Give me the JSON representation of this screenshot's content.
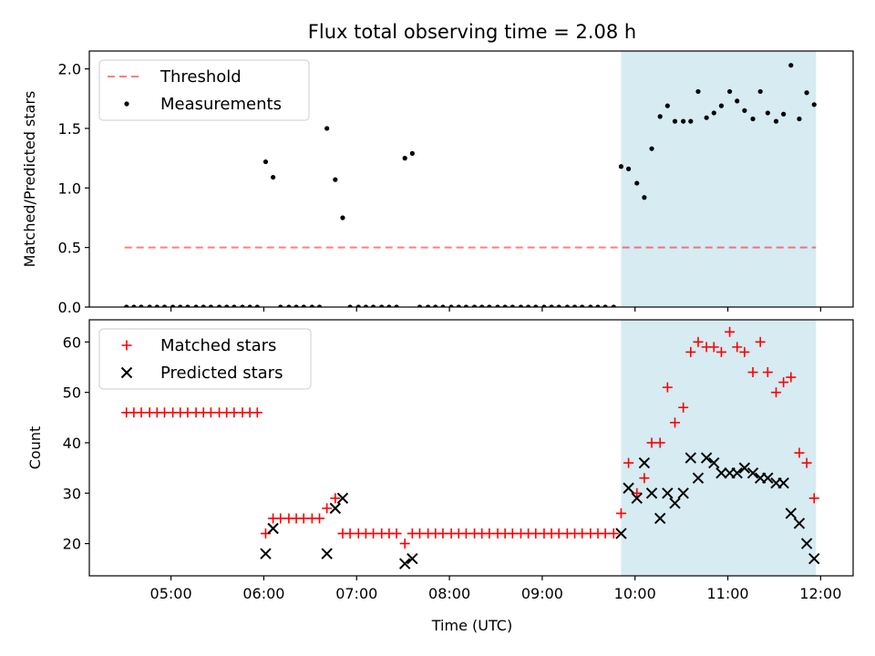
{
  "title": "Flux total observing time = 2.08 h",
  "x_axis": {
    "label": "Time (UTC)",
    "ticks": [
      {
        "t": 5.0,
        "label": "05:00"
      },
      {
        "t": 6.0,
        "label": "06:00"
      },
      {
        "t": 7.0,
        "label": "07:00"
      },
      {
        "t": 8.0,
        "label": "08:00"
      },
      {
        "t": 9.0,
        "label": "09:00"
      },
      {
        "t": 10.0,
        "label": "10:00"
      },
      {
        "t": 11.0,
        "label": "11:00"
      },
      {
        "t": 12.0,
        "label": "12:00"
      }
    ],
    "range": [
      4.12,
      12.35
    ]
  },
  "chart_data": [
    {
      "type": "scatter",
      "name": "ratio-panel",
      "ylabel": "Matched/Predicted stars",
      "ylim": [
        0,
        2.15
      ],
      "yticks": [
        0.0,
        0.5,
        1.0,
        1.5,
        2.0
      ],
      "ytick_labels": [
        "0.0",
        "0.5",
        "1.0",
        "1.5",
        "2.0"
      ],
      "shaded_interval": {
        "x_from": 9.85,
        "x_to": 11.95,
        "color": "#add8e6"
      },
      "threshold": {
        "name": "Threshold",
        "y": 0.5,
        "x_from": 4.5,
        "x_to": 11.95,
        "color": "#ff0000",
        "alpha": 0.5
      },
      "legend": {
        "location": "upper left",
        "entries": [
          "Threshold",
          "Measurements"
        ]
      },
      "series": [
        {
          "name": "Measurements",
          "color": "#000000",
          "points": [
            [
              4.52,
              0
            ],
            [
              4.6,
              0
            ],
            [
              4.68,
              0
            ],
            [
              4.77,
              0
            ],
            [
              4.85,
              0
            ],
            [
              4.93,
              0
            ],
            [
              5.02,
              0
            ],
            [
              5.1,
              0
            ],
            [
              5.18,
              0
            ],
            [
              5.27,
              0
            ],
            [
              5.35,
              0
            ],
            [
              5.43,
              0
            ],
            [
              5.52,
              0
            ],
            [
              5.6,
              0
            ],
            [
              5.68,
              0
            ],
            [
              5.77,
              0
            ],
            [
              5.85,
              0
            ],
            [
              5.93,
              0
            ],
            [
              6.02,
              1.22
            ],
            [
              6.1,
              1.09
            ],
            [
              6.18,
              0
            ],
            [
              6.27,
              0
            ],
            [
              6.35,
              0
            ],
            [
              6.43,
              0
            ],
            [
              6.52,
              0
            ],
            [
              6.6,
              0
            ],
            [
              6.68,
              1.5
            ],
            [
              6.77,
              1.07
            ],
            [
              6.85,
              0.75
            ],
            [
              6.93,
              0
            ],
            [
              7.02,
              0
            ],
            [
              7.1,
              0
            ],
            [
              7.18,
              0
            ],
            [
              7.27,
              0
            ],
            [
              7.35,
              0
            ],
            [
              7.43,
              0
            ],
            [
              7.52,
              1.25
            ],
            [
              7.6,
              1.29
            ],
            [
              7.68,
              0
            ],
            [
              7.77,
              0
            ],
            [
              7.85,
              0
            ],
            [
              7.93,
              0
            ],
            [
              8.02,
              0
            ],
            [
              8.1,
              0
            ],
            [
              8.18,
              0
            ],
            [
              8.27,
              0
            ],
            [
              8.35,
              0
            ],
            [
              8.43,
              0
            ],
            [
              8.52,
              0
            ],
            [
              8.6,
              0
            ],
            [
              8.68,
              0
            ],
            [
              8.77,
              0
            ],
            [
              8.85,
              0
            ],
            [
              8.93,
              0
            ],
            [
              9.02,
              0
            ],
            [
              9.1,
              0
            ],
            [
              9.18,
              0
            ],
            [
              9.27,
              0
            ],
            [
              9.35,
              0
            ],
            [
              9.43,
              0
            ],
            [
              9.52,
              0
            ],
            [
              9.6,
              0
            ],
            [
              9.68,
              0
            ],
            [
              9.77,
              0
            ],
            [
              9.85,
              1.18
            ],
            [
              9.93,
              1.16
            ],
            [
              10.02,
              1.04
            ],
            [
              10.1,
              0.92
            ],
            [
              10.18,
              1.33
            ],
            [
              10.27,
              1.6
            ],
            [
              10.35,
              1.69
            ],
            [
              10.43,
              1.56
            ],
            [
              10.52,
              1.56
            ],
            [
              10.6,
              1.56
            ],
            [
              10.68,
              1.81
            ],
            [
              10.77,
              1.59
            ],
            [
              10.85,
              1.63
            ],
            [
              10.93,
              1.69
            ],
            [
              11.02,
              1.81
            ],
            [
              11.1,
              1.73
            ],
            [
              11.18,
              1.65
            ],
            [
              11.27,
              1.58
            ],
            [
              11.35,
              1.81
            ],
            [
              11.43,
              1.63
            ],
            [
              11.52,
              1.56
            ],
            [
              11.6,
              1.62
            ],
            [
              11.68,
              2.03
            ],
            [
              11.77,
              1.58
            ],
            [
              11.85,
              1.8
            ],
            [
              11.93,
              1.7
            ]
          ]
        }
      ]
    },
    {
      "type": "scatter",
      "name": "count-panel",
      "ylabel": "Count",
      "ylim": [
        13.6,
        64.4
      ],
      "yticks": [
        20,
        30,
        40,
        50,
        60
      ],
      "ytick_labels": [
        "20",
        "30",
        "40",
        "50",
        "60"
      ],
      "shaded_interval": {
        "x_from": 9.85,
        "x_to": 11.95,
        "color": "#add8e6"
      },
      "legend": {
        "location": "upper left",
        "entries": [
          "Matched stars",
          "Predicted stars"
        ]
      },
      "series": [
        {
          "name": "Matched stars",
          "marker": "plus",
          "color": "#ff0000",
          "points": [
            [
              4.52,
              46
            ],
            [
              4.6,
              46
            ],
            [
              4.68,
              46
            ],
            [
              4.77,
              46
            ],
            [
              4.85,
              46
            ],
            [
              4.93,
              46
            ],
            [
              5.02,
              46
            ],
            [
              5.1,
              46
            ],
            [
              5.18,
              46
            ],
            [
              5.27,
              46
            ],
            [
              5.35,
              46
            ],
            [
              5.43,
              46
            ],
            [
              5.52,
              46
            ],
            [
              5.6,
              46
            ],
            [
              5.68,
              46
            ],
            [
              5.77,
              46
            ],
            [
              5.85,
              46
            ],
            [
              5.93,
              46
            ],
            [
              6.02,
              22
            ],
            [
              6.1,
              25
            ],
            [
              6.18,
              25
            ],
            [
              6.27,
              25
            ],
            [
              6.35,
              25
            ],
            [
              6.43,
              25
            ],
            [
              6.52,
              25
            ],
            [
              6.6,
              25
            ],
            [
              6.68,
              27
            ],
            [
              6.77,
              29
            ],
            [
              6.85,
              22
            ],
            [
              6.93,
              22
            ],
            [
              7.02,
              22
            ],
            [
              7.1,
              22
            ],
            [
              7.18,
              22
            ],
            [
              7.27,
              22
            ],
            [
              7.35,
              22
            ],
            [
              7.43,
              22
            ],
            [
              7.52,
              20
            ],
            [
              7.6,
              22
            ],
            [
              7.68,
              22
            ],
            [
              7.77,
              22
            ],
            [
              7.85,
              22
            ],
            [
              7.93,
              22
            ],
            [
              8.02,
              22
            ],
            [
              8.1,
              22
            ],
            [
              8.18,
              22
            ],
            [
              8.27,
              22
            ],
            [
              8.35,
              22
            ],
            [
              8.43,
              22
            ],
            [
              8.52,
              22
            ],
            [
              8.6,
              22
            ],
            [
              8.68,
              22
            ],
            [
              8.77,
              22
            ],
            [
              8.85,
              22
            ],
            [
              8.93,
              22
            ],
            [
              9.02,
              22
            ],
            [
              9.1,
              22
            ],
            [
              9.18,
              22
            ],
            [
              9.27,
              22
            ],
            [
              9.35,
              22
            ],
            [
              9.43,
              22
            ],
            [
              9.52,
              22
            ],
            [
              9.6,
              22
            ],
            [
              9.68,
              22
            ],
            [
              9.77,
              22
            ],
            [
              9.85,
              26
            ],
            [
              9.93,
              36
            ],
            [
              10.02,
              30
            ],
            [
              10.1,
              33
            ],
            [
              10.18,
              40
            ],
            [
              10.27,
              40
            ],
            [
              10.35,
              51
            ],
            [
              10.43,
              44
            ],
            [
              10.52,
              47
            ],
            [
              10.6,
              58
            ],
            [
              10.68,
              60
            ],
            [
              10.77,
              59
            ],
            [
              10.85,
              59
            ],
            [
              10.93,
              58
            ],
            [
              11.02,
              62
            ],
            [
              11.1,
              59
            ],
            [
              11.18,
              58
            ],
            [
              11.27,
              54
            ],
            [
              11.35,
              60
            ],
            [
              11.43,
              54
            ],
            [
              11.52,
              50
            ],
            [
              11.6,
              52
            ],
            [
              11.68,
              53
            ],
            [
              11.77,
              38
            ],
            [
              11.85,
              36
            ],
            [
              11.93,
              29
            ]
          ]
        },
        {
          "name": "Predicted stars",
          "marker": "x",
          "color": "#000000",
          "points": [
            [
              6.02,
              18
            ],
            [
              6.1,
              23
            ],
            [
              6.68,
              18
            ],
            [
              6.77,
              27
            ],
            [
              6.85,
              29
            ],
            [
              7.52,
              16
            ],
            [
              7.6,
              17
            ],
            [
              9.85,
              22
            ],
            [
              9.93,
              31
            ],
            [
              10.02,
              29
            ],
            [
              10.1,
              36
            ],
            [
              10.18,
              30
            ],
            [
              10.27,
              25
            ],
            [
              10.35,
              30
            ],
            [
              10.43,
              28
            ],
            [
              10.52,
              30
            ],
            [
              10.6,
              37
            ],
            [
              10.68,
              33
            ],
            [
              10.77,
              37
            ],
            [
              10.85,
              36
            ],
            [
              10.93,
              34
            ],
            [
              11.02,
              34
            ],
            [
              11.1,
              34
            ],
            [
              11.18,
              35
            ],
            [
              11.27,
              34
            ],
            [
              11.35,
              33
            ],
            [
              11.43,
              33
            ],
            [
              11.52,
              32
            ],
            [
              11.6,
              32
            ],
            [
              11.68,
              26
            ],
            [
              11.77,
              24
            ],
            [
              11.85,
              20
            ],
            [
              11.93,
              17
            ]
          ]
        }
      ]
    }
  ]
}
